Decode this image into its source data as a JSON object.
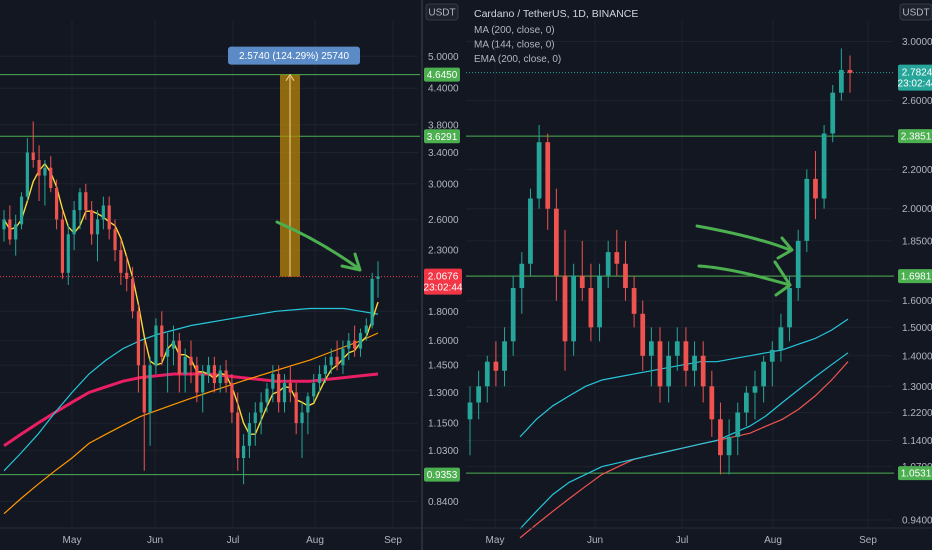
{
  "colors": {
    "background": "#131722",
    "grid": "#1e222d",
    "up": "#26a69a",
    "down": "#ef5350",
    "level_line": "#4caf50",
    "level_tag": "#4caf50",
    "price_tag_red": "#f23645",
    "ma200": "#e91e63",
    "ma144": "#26c6da",
    "ema200": "#ff9800",
    "short_ma": "#fdd835",
    "arrow": "#4caf50",
    "measure_fill": "#b8860b",
    "measure_label_bg": "#5b8bc6"
  },
  "icons": [
    "arrow-annotation",
    "price-range-measure"
  ],
  "chart_data": [
    {
      "type": "candlestick",
      "name": "left-panel",
      "currency": "USDT",
      "scale": "log",
      "ylim": [
        0.78,
        5.6
      ],
      "x_labels": [
        "May",
        "Jun",
        "Jul",
        "Aug",
        "Sep"
      ],
      "y_ticks": [
        "5.0000",
        "4.4000",
        "3.8000",
        "3.4000",
        "3.0000",
        "2.6000",
        "2.3000",
        "1.8000",
        "1.6000",
        "1.4500",
        "1.3000",
        "1.1500",
        "1.0300",
        "0.8400"
      ],
      "levels": [
        {
          "label": "4.6450",
          "value": 4.645
        },
        {
          "label": "3.6291",
          "value": 3.6291
        },
        {
          "label": "0.9353",
          "value": 0.9353
        }
      ],
      "dotted_level": 2.0676,
      "current_price": {
        "value": "2.0676",
        "countdown": "23:02:44"
      },
      "measure": {
        "label": "2.5740 (124.29%) 25740",
        "from": 2.0676,
        "to": 4.645
      },
      "candles": [
        [
          2.5,
          2.7,
          2.38,
          2.6
        ],
        [
          2.6,
          2.75,
          2.35,
          2.4
        ],
        [
          2.4,
          2.65,
          2.25,
          2.55
        ],
        [
          2.55,
          2.9,
          2.5,
          2.85
        ],
        [
          2.85,
          3.6,
          2.8,
          3.4
        ],
        [
          3.4,
          3.85,
          3.2,
          3.3
        ],
        [
          3.3,
          3.5,
          2.8,
          3.1
        ],
        [
          3.1,
          3.3,
          2.75,
          3.2
        ],
        [
          3.2,
          3.35,
          2.9,
          2.95
        ],
        [
          2.95,
          3.05,
          2.5,
          2.6
        ],
        [
          2.6,
          2.7,
          2.05,
          2.1
        ],
        [
          2.1,
          2.55,
          2.0,
          2.45
        ],
        [
          2.45,
          2.8,
          2.3,
          2.7
        ],
        [
          2.7,
          2.95,
          2.5,
          2.9
        ],
        [
          2.9,
          3.0,
          2.6,
          2.7
        ],
        [
          2.7,
          2.8,
          2.35,
          2.45
        ],
        [
          2.45,
          2.7,
          2.2,
          2.6
        ],
        [
          2.6,
          2.85,
          2.5,
          2.75
        ],
        [
          2.75,
          2.85,
          2.4,
          2.5
        ],
        [
          2.5,
          2.6,
          2.2,
          2.3
        ],
        [
          2.3,
          2.4,
          2.0,
          2.1
        ],
        [
          2.1,
          2.25,
          1.95,
          2.05
        ],
        [
          2.05,
          2.15,
          1.75,
          1.8
        ],
        [
          1.8,
          1.85,
          1.3,
          1.45
        ],
        [
          1.45,
          1.6,
          0.95,
          1.2
        ],
        [
          1.2,
          1.5,
          1.05,
          1.45
        ],
        [
          1.45,
          1.75,
          1.4,
          1.7
        ],
        [
          1.7,
          1.8,
          1.45,
          1.5
        ],
        [
          1.5,
          1.65,
          1.3,
          1.55
        ],
        [
          1.55,
          1.7,
          1.45,
          1.6
        ],
        [
          1.6,
          1.65,
          1.3,
          1.4
        ],
        [
          1.4,
          1.55,
          1.3,
          1.5
        ],
        [
          1.5,
          1.6,
          1.35,
          1.45
        ],
        [
          1.45,
          1.5,
          1.25,
          1.3
        ],
        [
          1.3,
          1.45,
          1.2,
          1.4
        ],
        [
          1.4,
          1.5,
          1.35,
          1.45
        ],
        [
          1.45,
          1.5,
          1.3,
          1.35
        ],
        [
          1.35,
          1.45,
          1.3,
          1.42
        ],
        [
          1.42,
          1.48,
          1.3,
          1.35
        ],
        [
          1.35,
          1.4,
          1.15,
          1.2
        ],
        [
          1.2,
          1.3,
          0.95,
          1.0
        ],
        [
          1.0,
          1.1,
          0.9,
          1.05
        ],
        [
          1.05,
          1.2,
          1.0,
          1.15
        ],
        [
          1.15,
          1.25,
          1.05,
          1.2
        ],
        [
          1.2,
          1.3,
          1.1,
          1.25
        ],
        [
          1.25,
          1.35,
          1.2,
          1.32
        ],
        [
          1.32,
          1.45,
          1.25,
          1.4
        ],
        [
          1.4,
          1.45,
          1.2,
          1.25
        ],
        [
          1.25,
          1.4,
          1.2,
          1.35
        ],
        [
          1.35,
          1.45,
          1.25,
          1.3
        ],
        [
          1.3,
          1.35,
          1.1,
          1.15
        ],
        [
          1.15,
          1.25,
          1.0,
          1.2
        ],
        [
          1.2,
          1.3,
          1.1,
          1.28
        ],
        [
          1.28,
          1.4,
          1.25,
          1.35
        ],
        [
          1.35,
          1.45,
          1.3,
          1.4
        ],
        [
          1.4,
          1.5,
          1.35,
          1.45
        ],
        [
          1.45,
          1.55,
          1.4,
          1.5
        ],
        [
          1.5,
          1.6,
          1.42,
          1.45
        ],
        [
          1.45,
          1.6,
          1.4,
          1.55
        ],
        [
          1.55,
          1.65,
          1.48,
          1.6
        ],
        [
          1.6,
          1.7,
          1.5,
          1.55
        ],
        [
          1.55,
          1.68,
          1.5,
          1.65
        ],
        [
          1.65,
          1.75,
          1.6,
          1.7
        ],
        [
          1.7,
          2.1,
          1.68,
          2.05
        ],
        [
          2.05,
          2.2,
          1.9,
          2.07
        ]
      ],
      "series": [
        {
          "name": "MA 200",
          "values": [
            1.05,
            1.1,
            1.15,
            1.2,
            1.25,
            1.3,
            1.33,
            1.36,
            1.38,
            1.39,
            1.4,
            1.4,
            1.4,
            1.39,
            1.38,
            1.37,
            1.36,
            1.36,
            1.36,
            1.37,
            1.38,
            1.39,
            1.4
          ]
        },
        {
          "name": "MA 144",
          "values": [
            0.95,
            1.02,
            1.1,
            1.2,
            1.3,
            1.4,
            1.48,
            1.55,
            1.6,
            1.64,
            1.67,
            1.7,
            1.72,
            1.74,
            1.76,
            1.78,
            1.8,
            1.81,
            1.82,
            1.82,
            1.82,
            1.8,
            1.78
          ]
        },
        {
          "name": "EMA 200",
          "values": [
            0.8,
            0.85,
            0.9,
            0.95,
            1.0,
            1.06,
            1.1,
            1.14,
            1.18,
            1.21,
            1.24,
            1.27,
            1.3,
            1.33,
            1.36,
            1.39,
            1.42,
            1.45,
            1.48,
            1.52,
            1.56,
            1.6,
            1.65
          ]
        }
      ]
    },
    {
      "type": "candlestick",
      "name": "right-panel",
      "title": "Cardano / TetherUS, 1D, BINANCE",
      "legend": [
        "MA (200, close, 0)",
        "MA (144, close, 0)",
        "EMA (200, close, 0)"
      ],
      "currency": "USDT",
      "scale": "log",
      "ylim": [
        0.94,
        3.1
      ],
      "x_labels": [
        "May",
        "Jun",
        "Jul",
        "Aug",
        "Sep"
      ],
      "y_ticks": [
        "3.0000",
        "2.6000",
        "2.2000",
        "2.0000",
        "1.8500",
        "1.7000",
        "1.6000",
        "1.5000",
        "1.4000",
        "1.3000",
        "1.2200",
        "1.1400",
        "1.0700",
        "0.9400"
      ],
      "levels": [
        {
          "label": "2.3851",
          "value": 2.3851
        },
        {
          "label": "1.6981",
          "value": 1.6981
        },
        {
          "label": "1.0531",
          "value": 1.0531
        }
      ],
      "dotted_level": 2.7824,
      "current_price": {
        "value": "2.7824",
        "countdown": "23:02:44"
      },
      "candles": [
        [
          1.2,
          1.3,
          1.1,
          1.25
        ],
        [
          1.25,
          1.35,
          1.2,
          1.3
        ],
        [
          1.3,
          1.4,
          1.25,
          1.38
        ],
        [
          1.38,
          1.45,
          1.3,
          1.35
        ],
        [
          1.35,
          1.5,
          1.3,
          1.45
        ],
        [
          1.45,
          1.7,
          1.4,
          1.65
        ],
        [
          1.65,
          1.8,
          1.55,
          1.75
        ],
        [
          1.75,
          2.1,
          1.7,
          2.05
        ],
        [
          2.05,
          2.45,
          2.0,
          2.35
        ],
        [
          2.35,
          2.4,
          1.9,
          2.0
        ],
        [
          2.0,
          2.1,
          1.6,
          1.7
        ],
        [
          1.7,
          1.9,
          1.35,
          1.45
        ],
        [
          1.45,
          1.75,
          1.4,
          1.7
        ],
        [
          1.7,
          1.85,
          1.6,
          1.65
        ],
        [
          1.65,
          1.75,
          1.45,
          1.5
        ],
        [
          1.5,
          1.75,
          1.45,
          1.7
        ],
        [
          1.7,
          1.85,
          1.65,
          1.8
        ],
        [
          1.8,
          1.9,
          1.7,
          1.75
        ],
        [
          1.75,
          1.85,
          1.6,
          1.65
        ],
        [
          1.65,
          1.7,
          1.5,
          1.55
        ],
        [
          1.55,
          1.6,
          1.35,
          1.4
        ],
        [
          1.4,
          1.5,
          1.3,
          1.45
        ],
        [
          1.45,
          1.5,
          1.25,
          1.3
        ],
        [
          1.3,
          1.45,
          1.25,
          1.4
        ],
        [
          1.4,
          1.5,
          1.35,
          1.45
        ],
        [
          1.45,
          1.5,
          1.3,
          1.35
        ],
        [
          1.35,
          1.45,
          1.3,
          1.4
        ],
        [
          1.4,
          1.45,
          1.25,
          1.3
        ],
        [
          1.3,
          1.35,
          1.15,
          1.2
        ],
        [
          1.2,
          1.25,
          1.05,
          1.1
        ],
        [
          1.1,
          1.2,
          1.05,
          1.15
        ],
        [
          1.15,
          1.25,
          1.1,
          1.22
        ],
        [
          1.22,
          1.3,
          1.18,
          1.28
        ],
        [
          1.28,
          1.35,
          1.2,
          1.3
        ],
        [
          1.3,
          1.4,
          1.25,
          1.38
        ],
        [
          1.38,
          1.45,
          1.3,
          1.42
        ],
        [
          1.42,
          1.55,
          1.38,
          1.5
        ],
        [
          1.5,
          1.7,
          1.45,
          1.65
        ],
        [
          1.65,
          1.9,
          1.6,
          1.85
        ],
        [
          1.85,
          2.2,
          1.8,
          2.15
        ],
        [
          2.15,
          2.3,
          1.95,
          2.05
        ],
        [
          2.05,
          2.45,
          2.0,
          2.4
        ],
        [
          2.4,
          2.7,
          2.35,
          2.65
        ],
        [
          2.65,
          2.95,
          2.6,
          2.8
        ],
        [
          2.8,
          2.9,
          2.65,
          2.78
        ]
      ],
      "series": [
        {
          "name": "MA (200, close, 0)",
          "values": [
            0.9,
            0.93,
            0.96,
            0.99,
            1.02,
            1.05,
            1.07,
            1.09,
            1.1,
            1.11,
            1.12,
            1.13,
            1.14,
            1.15,
            1.16,
            1.18,
            1.2,
            1.23,
            1.27,
            1.32,
            1.38
          ]
        },
        {
          "name": "MA (144, close, 0)",
          "values": [
            0.92,
            0.96,
            1.0,
            1.03,
            1.05,
            1.07,
            1.08,
            1.09,
            1.1,
            1.11,
            1.12,
            1.13,
            1.14,
            1.16,
            1.18,
            1.21,
            1.25,
            1.29,
            1.33,
            1.37,
            1.41
          ]
        },
        {
          "name": "EMA (200, close, 0)",
          "values": [
            1.15,
            1.2,
            1.24,
            1.27,
            1.3,
            1.32,
            1.33,
            1.34,
            1.35,
            1.36,
            1.37,
            1.38,
            1.38,
            1.39,
            1.4,
            1.41,
            1.42,
            1.44,
            1.46,
            1.49,
            1.53
          ]
        }
      ]
    }
  ]
}
